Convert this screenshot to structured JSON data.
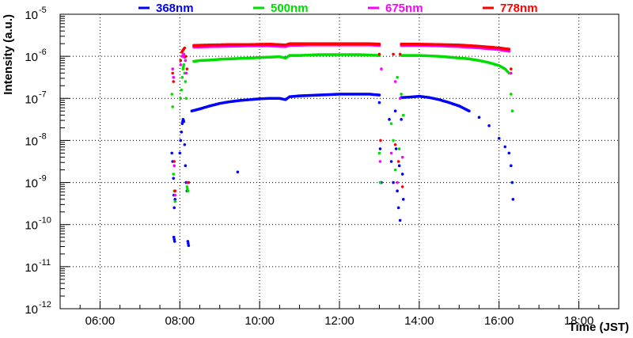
{
  "chart_data": {
    "type": "scatter",
    "title": "",
    "xlabel": "Time (JST)",
    "ylabel": "Intensity (a.u.)",
    "xlim": [
      5.0,
      19.0
    ],
    "ylim_log10": [
      -12,
      -5
    ],
    "y_scale": "log",
    "grid": true,
    "x_ticks": [
      {
        "value": 6,
        "label": "06:00"
      },
      {
        "value": 8,
        "label": "08:00"
      },
      {
        "value": 10,
        "label": "10:00"
      },
      {
        "value": 12,
        "label": "12:00"
      },
      {
        "value": 14,
        "label": "14:00"
      },
      {
        "value": 16,
        "label": "16:00"
      },
      {
        "value": 18,
        "label": "18:00"
      }
    ],
    "y_ticks": [
      {
        "exp": -12,
        "base": "10",
        "sup": "-12"
      },
      {
        "exp": -11,
        "base": "10",
        "sup": "-11"
      },
      {
        "exp": -10,
        "base": "10",
        "sup": "-10"
      },
      {
        "exp": -9,
        "base": "10",
        "sup": "-9"
      },
      {
        "exp": -8,
        "base": "10",
        "sup": "-8"
      },
      {
        "exp": -7,
        "base": "10",
        "sup": "-7"
      },
      {
        "exp": -6,
        "base": "10",
        "sup": "-6"
      },
      {
        "exp": -5,
        "base": "10",
        "sup": "-5"
      }
    ],
    "legend_position": "top",
    "series": [
      {
        "name": "368nm",
        "color": "#0000ff",
        "log10_points": [
          [
            7.85,
            -10.3
          ],
          [
            7.87,
            -10.4
          ],
          [
            7.8,
            -8.3
          ],
          [
            7.82,
            -8.5
          ],
          [
            7.84,
            -8.9
          ],
          [
            7.85,
            -9.3
          ],
          [
            7.86,
            -9.6
          ],
          [
            7.88,
            -9.4
          ],
          [
            8.0,
            -8.3
          ],
          [
            8.02,
            -8.0
          ],
          [
            8.04,
            -7.8
          ],
          [
            8.06,
            -7.6
          ],
          [
            8.08,
            -7.5
          ],
          [
            8.1,
            -7.55
          ],
          [
            8.12,
            -8.1
          ],
          [
            8.14,
            -8.6
          ],
          [
            8.16,
            -9.0
          ],
          [
            8.18,
            -9.2
          ],
          [
            8.2,
            -10.4
          ],
          [
            8.22,
            -10.5
          ],
          [
            9.45,
            -8.75
          ],
          [
            8.3,
            -7.3
          ],
          [
            8.5,
            -7.25
          ],
          [
            8.75,
            -7.18
          ],
          [
            9.0,
            -7.12
          ],
          [
            9.25,
            -7.08
          ],
          [
            9.5,
            -7.05
          ],
          [
            9.75,
            -7.03
          ],
          [
            10.0,
            -7.01
          ],
          [
            10.25,
            -7.0
          ],
          [
            10.5,
            -7.0
          ],
          [
            10.65,
            -7.03
          ],
          [
            10.75,
            -6.96
          ],
          [
            11.0,
            -6.94
          ],
          [
            11.25,
            -6.93
          ],
          [
            11.5,
            -6.92
          ],
          [
            11.75,
            -6.91
          ],
          [
            12.0,
            -6.9
          ],
          [
            12.25,
            -6.9
          ],
          [
            12.5,
            -6.9
          ],
          [
            12.75,
            -6.9
          ],
          [
            13.0,
            -6.92
          ],
          [
            13.55,
            -6.98
          ],
          [
            13.75,
            -6.97
          ],
          [
            14.0,
            -6.95
          ],
          [
            14.25,
            -6.98
          ],
          [
            14.5,
            -7.03
          ],
          [
            14.75,
            -7.1
          ],
          [
            15.0,
            -7.18
          ],
          [
            15.25,
            -7.3
          ],
          [
            15.5,
            -7.45
          ],
          [
            15.75,
            -7.65
          ],
          [
            16.0,
            -7.95
          ],
          [
            16.15,
            -8.15
          ],
          [
            16.25,
            -8.3
          ],
          [
            16.3,
            -8.6
          ],
          [
            16.33,
            -9.0
          ],
          [
            16.35,
            -9.4
          ],
          [
            13.0,
            -7.1
          ],
          [
            13.02,
            -8.2
          ],
          [
            13.05,
            -9.0
          ],
          [
            13.25,
            -7.5
          ],
          [
            13.3,
            -8.5
          ],
          [
            13.35,
            -9.0
          ],
          [
            13.4,
            -7.3
          ],
          [
            13.42,
            -8.2
          ],
          [
            13.45,
            -9.2
          ],
          [
            13.48,
            -9.6
          ],
          [
            13.5,
            -8.6
          ],
          [
            13.52,
            -9.9
          ],
          [
            13.55,
            -7.5
          ],
          [
            13.58,
            -8.8
          ],
          [
            13.6,
            -9.4
          ]
        ]
      },
      {
        "name": "500nm",
        "color": "#00dd00",
        "log10_points": [
          [
            7.8,
            -6.9
          ],
          [
            7.82,
            -7.2
          ],
          [
            7.84,
            -8.8
          ],
          [
            7.86,
            -9.2
          ],
          [
            7.88,
            -9.45
          ],
          [
            8.02,
            -7.0
          ],
          [
            8.04,
            -6.8
          ],
          [
            8.06,
            -6.5
          ],
          [
            8.08,
            -6.3
          ],
          [
            8.1,
            -6.2
          ],
          [
            8.12,
            -6.4
          ],
          [
            8.14,
            -6.6
          ],
          [
            8.16,
            -7.0
          ],
          [
            8.18,
            -9.1
          ],
          [
            8.2,
            -9.2
          ],
          [
            8.35,
            -6.12
          ],
          [
            8.5,
            -6.1
          ],
          [
            8.75,
            -6.09
          ],
          [
            9.0,
            -6.07
          ],
          [
            9.25,
            -6.06
          ],
          [
            9.5,
            -6.05
          ],
          [
            9.75,
            -6.04
          ],
          [
            10.0,
            -6.03
          ],
          [
            10.25,
            -6.02
          ],
          [
            10.5,
            -6.01
          ],
          [
            10.65,
            -6.04
          ],
          [
            10.75,
            -5.98
          ],
          [
            11.0,
            -5.98
          ],
          [
            11.25,
            -5.97
          ],
          [
            11.5,
            -5.96
          ],
          [
            11.75,
            -5.96
          ],
          [
            12.0,
            -5.96
          ],
          [
            12.25,
            -5.96
          ],
          [
            12.5,
            -5.96
          ],
          [
            12.75,
            -5.97
          ],
          [
            13.0,
            -5.98
          ],
          [
            13.55,
            -5.98
          ],
          [
            13.75,
            -5.98
          ],
          [
            14.0,
            -5.98
          ],
          [
            14.25,
            -5.99
          ],
          [
            14.5,
            -6.0
          ],
          [
            14.75,
            -6.02
          ],
          [
            15.0,
            -6.04
          ],
          [
            15.25,
            -6.06
          ],
          [
            15.5,
            -6.1
          ],
          [
            15.75,
            -6.15
          ],
          [
            16.0,
            -6.22
          ],
          [
            16.15,
            -6.3
          ],
          [
            16.25,
            -6.4
          ],
          [
            16.3,
            -6.9
          ],
          [
            16.33,
            -7.3
          ],
          [
            13.0,
            -8.3
          ],
          [
            13.02,
            -9.0
          ],
          [
            13.3,
            -7.6
          ],
          [
            13.35,
            -8.0
          ],
          [
            13.4,
            -8.7
          ],
          [
            13.45,
            -6.5
          ],
          [
            13.5,
            -8.2
          ],
          [
            13.55,
            -6.9
          ],
          [
            13.6,
            -7.4
          ]
        ]
      },
      {
        "name": "675nm",
        "color": "#ff00ff",
        "log10_points": [
          [
            7.82,
            -6.3
          ],
          [
            7.84,
            -6.5
          ],
          [
            7.86,
            -8.6
          ],
          [
            7.88,
            -9.3
          ],
          [
            8.02,
            -6.2
          ],
          [
            8.06,
            -6.0
          ],
          [
            8.1,
            -5.95
          ],
          [
            8.14,
            -6.1
          ],
          [
            8.16,
            -6.4
          ],
          [
            8.2,
            -9.0
          ],
          [
            8.35,
            -5.78
          ],
          [
            8.75,
            -5.77
          ],
          [
            9.25,
            -5.76
          ],
          [
            9.75,
            -5.75
          ],
          [
            10.25,
            -5.75
          ],
          [
            10.65,
            -5.77
          ],
          [
            10.75,
            -5.74
          ],
          [
            11.25,
            -5.73
          ],
          [
            11.75,
            -5.73
          ],
          [
            12.25,
            -5.73
          ],
          [
            12.75,
            -5.73
          ],
          [
            13.0,
            -5.74
          ],
          [
            13.55,
            -5.74
          ],
          [
            14.0,
            -5.74
          ],
          [
            14.5,
            -5.75
          ],
          [
            15.0,
            -5.77
          ],
          [
            15.5,
            -5.8
          ],
          [
            16.0,
            -5.84
          ],
          [
            16.25,
            -5.88
          ],
          [
            16.3,
            -6.4
          ],
          [
            13.02,
            -8.5
          ],
          [
            13.05,
            -6.3
          ],
          [
            13.3,
            -8.3
          ],
          [
            13.4,
            -6.6
          ],
          [
            13.45,
            -9.0
          ],
          [
            13.52,
            -7.0
          ],
          [
            13.58,
            -8.4
          ]
        ]
      },
      {
        "name": "778nm",
        "color": "#ff0000",
        "log10_points": [
          [
            7.82,
            -6.4
          ],
          [
            7.84,
            -6.6
          ],
          [
            7.86,
            -8.5
          ],
          [
            7.88,
            -9.2
          ],
          [
            8.02,
            -6.1
          ],
          [
            8.05,
            -5.9
          ],
          [
            8.08,
            -5.85
          ],
          [
            8.12,
            -5.8
          ],
          [
            8.15,
            -6.0
          ],
          [
            8.18,
            -6.3
          ],
          [
            8.22,
            -9.0
          ],
          [
            8.35,
            -5.74
          ],
          [
            8.75,
            -5.73
          ],
          [
            9.25,
            -5.72
          ],
          [
            9.75,
            -5.72
          ],
          [
            10.25,
            -5.71
          ],
          [
            10.65,
            -5.73
          ],
          [
            10.75,
            -5.7
          ],
          [
            11.25,
            -5.7
          ],
          [
            11.75,
            -5.7
          ],
          [
            12.25,
            -5.7
          ],
          [
            12.75,
            -5.7
          ],
          [
            13.0,
            -5.71
          ],
          [
            13.55,
            -5.71
          ],
          [
            14.0,
            -5.71
          ],
          [
            14.5,
            -5.72
          ],
          [
            15.0,
            -5.73
          ],
          [
            15.5,
            -5.76
          ],
          [
            16.0,
            -5.8
          ],
          [
            16.25,
            -5.83
          ],
          [
            16.3,
            -6.3
          ],
          [
            13.0,
            -5.95
          ],
          [
            13.03,
            -8.0
          ],
          [
            13.35,
            -5.95
          ],
          [
            13.4,
            -8.1
          ],
          [
            13.48,
            -8.5
          ],
          [
            13.52,
            -5.95
          ],
          [
            13.58,
            -9.1
          ]
        ]
      }
    ]
  }
}
